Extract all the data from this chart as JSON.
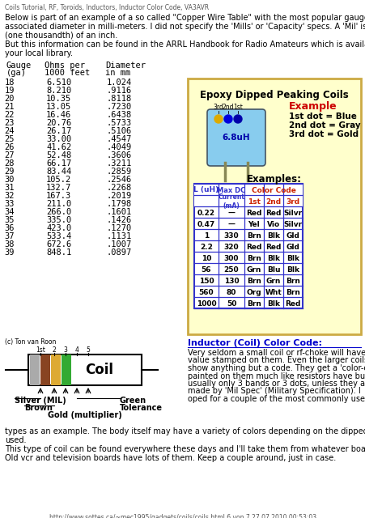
{
  "title_line": "Coils Tutorial, RF, Toroids, Inductors, Inductor Color Code, VA3AVR",
  "intro_text": "Below is part of an example of a so called \"Copper Wire Table\" with the most popular gauge #'s and\nassociated diameter in milli-meters. I did not specify the 'Mills' or 'Capacity' specs. A 'Mil' is 1/1000\n(one thousandth) of an inch.\nBut this information can be found in the ARRL Handbook for Radio Amateurs which is available at\nyour local library.",
  "gauge_data": [
    [
      "18",
      "6.510",
      "1.024"
    ],
    [
      "19",
      "8.210",
      ".9116"
    ],
    [
      "20",
      "10.35",
      ".8118"
    ],
    [
      "21",
      "13.05",
      ".7230"
    ],
    [
      "22",
      "16.46",
      ".6438"
    ],
    [
      "23",
      "20.76",
      ".5733"
    ],
    [
      "24",
      "26.17",
      ".5106"
    ],
    [
      "25",
      "33.00",
      ".4547"
    ],
    [
      "26",
      "41.62",
      ".4049"
    ],
    [
      "27",
      "52.48",
      ".3606"
    ],
    [
      "28",
      "66.17",
      ".3211"
    ],
    [
      "29",
      "83.44",
      ".2859"
    ],
    [
      "30",
      "105.2",
      ".2546"
    ],
    [
      "31",
      "132.7",
      ".2268"
    ],
    [
      "32",
      "167.3",
      ".2019"
    ],
    [
      "33",
      "211.0",
      ".1798"
    ],
    [
      "34",
      "266.0",
      ".1601"
    ],
    [
      "35",
      "335.0",
      ".1426"
    ],
    [
      "36",
      "423.0",
      ".1270"
    ],
    [
      "37",
      "533.4",
      ".1131"
    ],
    [
      "38",
      "672.6",
      ".1007"
    ],
    [
      "39",
      "848.1",
      ".0897"
    ]
  ],
  "epoxy_title": "Epoxy Dipped Peaking Coils",
  "example_label": "Example",
  "example_lines": [
    "1st dot = Blue",
    "2nd dot = Gray",
    "3rd dot = Gold"
  ],
  "inductor_label": "6.8uH",
  "examples_header": "Examples:",
  "table_data": [
    [
      "0.22",
      "—",
      "Red",
      "Red",
      "Silvr"
    ],
    [
      "0.47",
      "—",
      "Yel",
      "Vio",
      "Silvr"
    ],
    [
      "1",
      "330",
      "Brn",
      "Blk",
      "Gld"
    ],
    [
      "2.2",
      "320",
      "Red",
      "Red",
      "Gld"
    ],
    [
      "10",
      "300",
      "Brn",
      "Blk",
      "Blk"
    ],
    [
      "56",
      "250",
      "Grn",
      "Blu",
      "Blk"
    ],
    [
      "150",
      "130",
      "Brn",
      "Grn",
      "Brn"
    ],
    [
      "560",
      "80",
      "Org",
      "Wht",
      "Brn"
    ],
    [
      "1000",
      "50",
      "Brn",
      "Blk",
      "Red"
    ]
  ],
  "coil_section_credit": "(c) Ton van Roon",
  "coil_label": "Coil",
  "silver_label": "Silver (MIL)",
  "brown_label": "Brown",
  "gold_label": "Gold (multiplier)",
  "green_label": "Green",
  "tolerance_label": "Tolerance",
  "inductor_title": "Inductor (Coil) Color Code:",
  "inductor_text1": "Very seldom a small coil or rf-choke will have the\nvalue stamped on them. Even the larger coils don't\nshow anything but a code. They get a 'color-code'\npainted on them much like resistors have but\nusually only 3 bands or 3 dots, unless they are\nmade by 'Mil Spec' (Military Specification). I\noped for a couple of the most commonly used",
  "inductor_text2": "types as an example. The body itself may have a variety of colors depending on the dipped substance\nused.\nThis type of coil can be found everywhere these days and I'll take them from whatever board I can.\nOld vcr and television boards have lots of them. Keep a couple around, just in case.",
  "footer": "http://www.sottes.ca/~mec1995/gadgets/coils/coils.html 6 von 7 27.07.2010 00:53:03",
  "bg_color": "#ffffff",
  "epoxy_bg": "#ffffcc",
  "epoxy_border": "#ccaa44",
  "table_border_blue": "#3333cc",
  "table_header_red": "#cc2200"
}
